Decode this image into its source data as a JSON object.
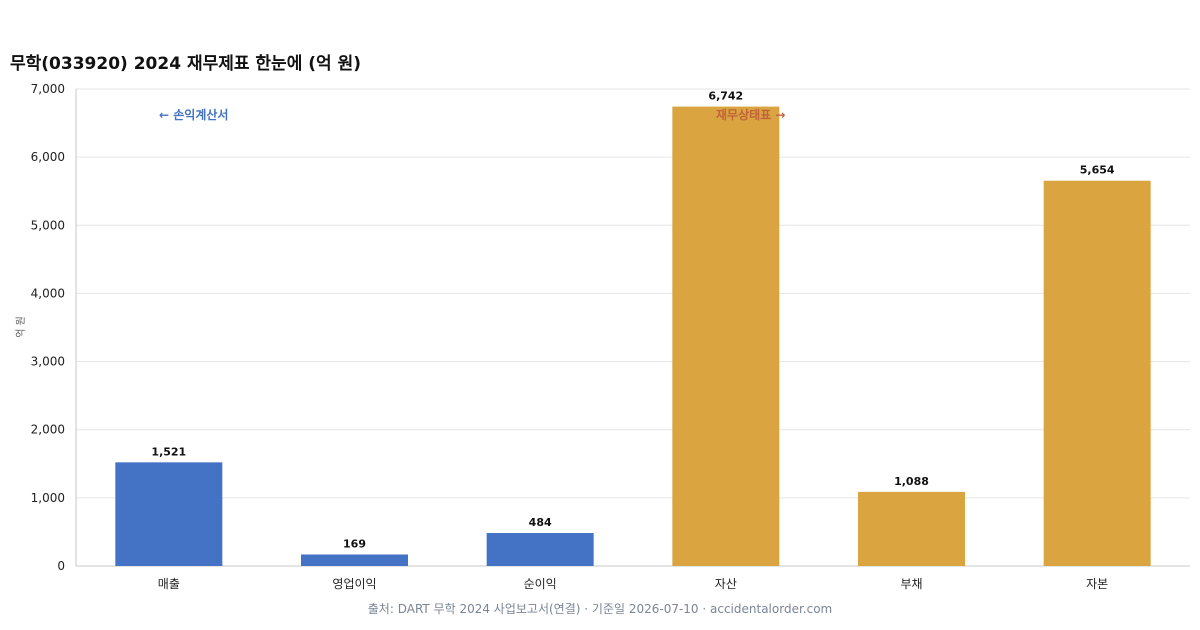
{
  "chart_data": {
    "type": "bar",
    "title": "무학(033920) 2024 재무제표 한눈에 (억 원)",
    "ylabel": "억 원",
    "xlabel": "",
    "ylim": [
      0,
      7000
    ],
    "yticks": [
      0,
      1000,
      2000,
      3000,
      4000,
      5000,
      6000,
      7000
    ],
    "ytick_labels": [
      "0",
      "1,000",
      "2,000",
      "3,000",
      "4,000",
      "5,000",
      "6,000",
      "7,000"
    ],
    "grid": true,
    "categories": [
      "매출",
      "영업이익",
      "순이익",
      "자산",
      "부채",
      "자본"
    ],
    "values": [
      1521,
      169,
      484,
      6742,
      1088,
      5654
    ],
    "value_labels": [
      "1,521",
      "169",
      "484",
      "6,742",
      "1,088",
      "5,654"
    ],
    "groups": [
      "income",
      "income",
      "income",
      "balance",
      "balance",
      "balance"
    ],
    "colors": {
      "income": "#4472c4",
      "balance": "#daa540",
      "income_text": "#4472c4",
      "balance_text": "#c0633a"
    },
    "annotations": {
      "income": "← 손익계산서",
      "balance": "재무상태표 →"
    }
  },
  "footer": {
    "source": "출처: DART 무학 2024 사업보고서(연결) · 기준일 2026-07-10 · accidentalorder.com"
  }
}
